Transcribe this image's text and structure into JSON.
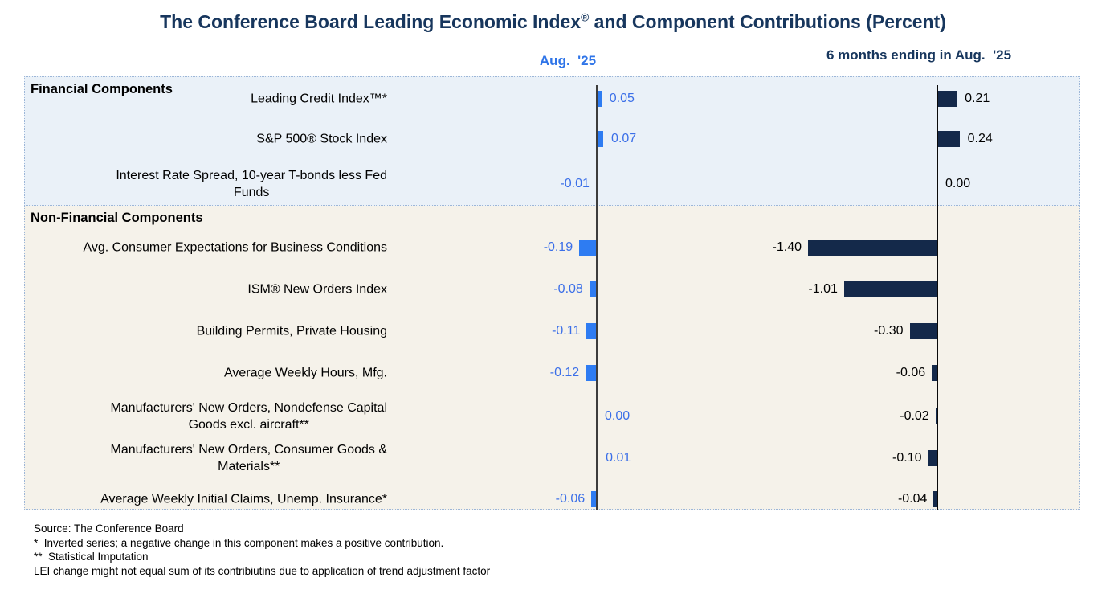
{
  "title": {
    "pre": "The Conference Board Leading Economic Index",
    "sup": "®",
    "post": " and Component Contributions (Percent)"
  },
  "column_headers": {
    "aug": "Aug.  '25",
    "six_months": "6 months ending in Aug.  '25"
  },
  "sections": {
    "financial": "Financial Components",
    "non_financial": "Non-Financial Components"
  },
  "chart_data": {
    "type": "bar",
    "orientation": "horizontal",
    "title": "The Conference Board Leading Economic Index® and Component Contributions (Percent)",
    "categories": [
      [
        "Leading Credit Index™*"
      ],
      [
        "S&P 500® Stock Index"
      ],
      [
        "Interest Rate Spread, 10-year T-bonds less Fed",
        "Funds"
      ],
      [
        "Avg. Consumer Expectations for Business Conditions"
      ],
      [
        "ISM® New Orders Index"
      ],
      [
        "Building Permits, Private Housing"
      ],
      [
        "Average Weekly Hours, Mfg."
      ],
      [
        "Manufacturers' New Orders, Nondefense Capital",
        "Goods excl. aircraft**"
      ],
      [
        "Manufacturers' New Orders, Consumer Goods &",
        "Materials**"
      ],
      [
        "Average Weekly Initial Claims, Unemp. Insurance*"
      ]
    ],
    "section_split": {
      "financial_row_indices": [
        0,
        1,
        2
      ],
      "non_financial_row_indices": [
        3,
        4,
        5,
        6,
        7,
        8,
        9
      ]
    },
    "series": [
      {
        "name": "Aug.  '25",
        "bar_color": "#2E7CF2",
        "value_text_color": "#3B6FE8",
        "values": [
          0.05,
          0.07,
          -0.01,
          -0.19,
          -0.08,
          -0.11,
          -0.12,
          0.0,
          0.01,
          -0.06
        ]
      },
      {
        "name": "6 months ending in Aug.  '25",
        "bar_color": "#14294A",
        "value_text_color": "#000000",
        "values": [
          0.21,
          0.24,
          0.0,
          -1.4,
          -1.01,
          -0.3,
          -0.06,
          -0.02,
          -0.1,
          -0.04
        ]
      }
    ],
    "value_label_format": "0.00",
    "baseline": 0,
    "grid": false,
    "legend_position": "column-headers-above-chart"
  },
  "footer": {
    "source": "Source: The Conference Board",
    "note_inverted": "*  Inverted series; a negative change in this component makes a positive contribution.",
    "note_imputation": "**  Statistical Imputation",
    "note_trend": "LEI change might not equal sum of its contribiutins due to application of trend adjustment factor"
  }
}
